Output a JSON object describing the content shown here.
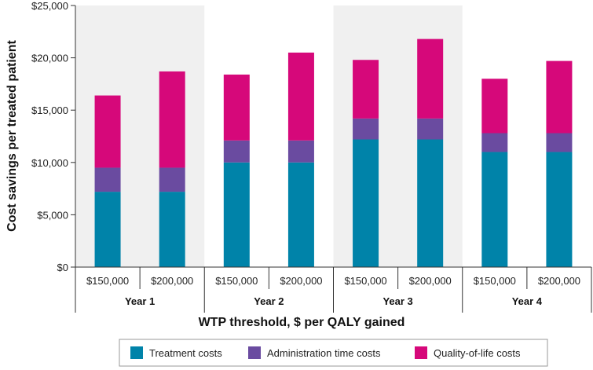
{
  "chart_data": {
    "type": "bar",
    "stacked": true,
    "ylabel": "Cost savings per treated patient",
    "xlabel": "WTP threshold, $ per QALY gained",
    "ylim": [
      0,
      25000
    ],
    "yticks": [
      0,
      5000,
      10000,
      15000,
      20000,
      25000
    ],
    "ytick_labels": [
      "$0",
      "$5,000",
      "$10,000",
      "$15,000",
      "$20,000",
      "$25,000"
    ],
    "groups": [
      "Year 1",
      "Year 2",
      "Year 3",
      "Year 4"
    ],
    "categories": [
      "$150,000",
      "$200,000",
      "$150,000",
      "$200,000",
      "$150,000",
      "$200,000",
      "$150,000",
      "$200,000"
    ],
    "series": [
      {
        "name": "Treatment costs",
        "color": "#0083A9",
        "values": [
          7200,
          7200,
          10000,
          10000,
          12200,
          12200,
          11000,
          11000
        ]
      },
      {
        "name": "Administration time costs",
        "color": "#6A4BA0",
        "values": [
          2300,
          2300,
          2100,
          2100,
          2000,
          2000,
          1800,
          1800
        ]
      },
      {
        "name": "Quality-of-life costs",
        "color": "#D6087A",
        "values": [
          6900,
          9200,
          6300,
          8400,
          5600,
          7600,
          5200,
          6900
        ]
      }
    ],
    "shaded_groups": [
      "Year 1",
      "Year 3"
    ],
    "shade_color": "#f0f0f0",
    "legend_position": "bottom"
  }
}
